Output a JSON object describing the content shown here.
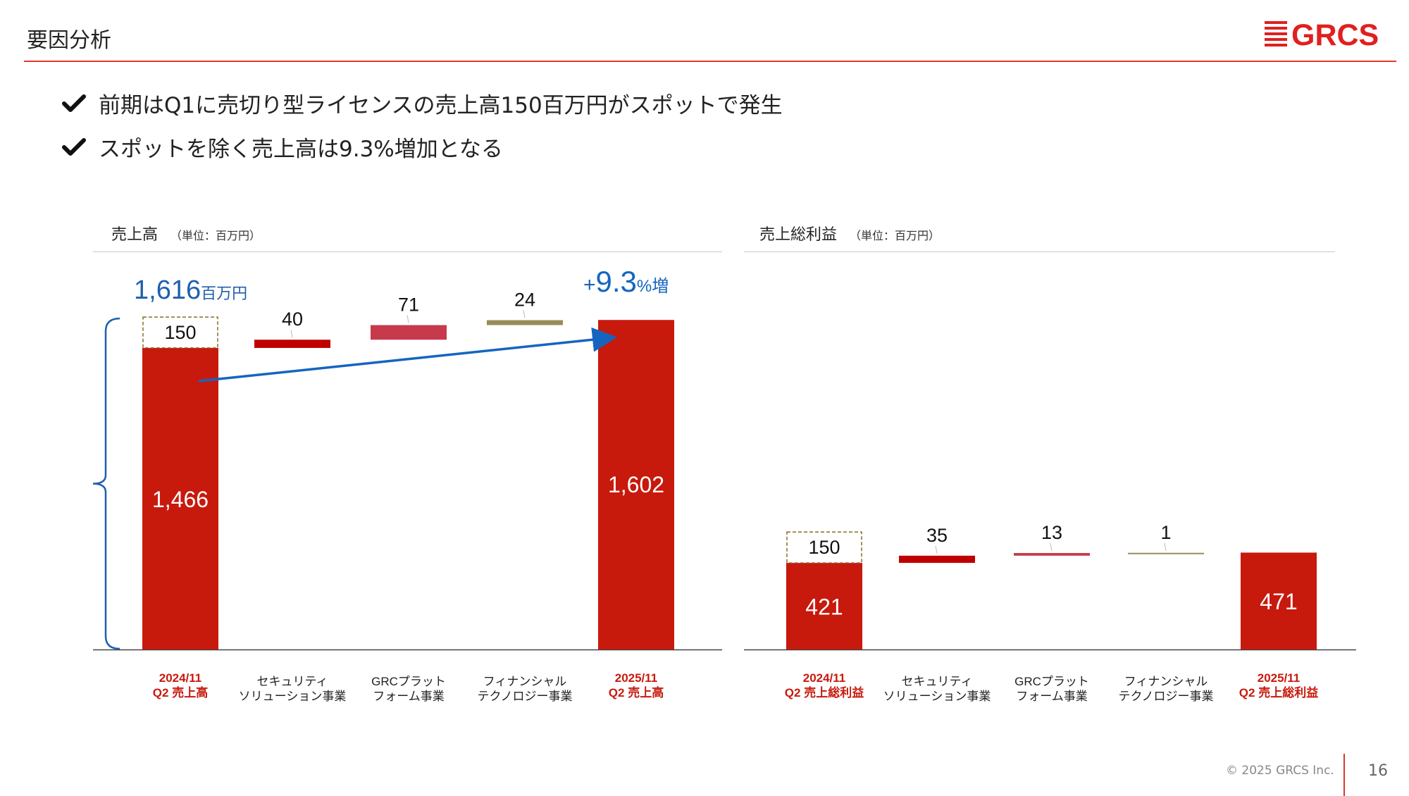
{
  "header": {
    "title": "要因分析",
    "logo_text": "GRCS"
  },
  "bullets": [
    "前期はQ1に売切り型ライセンスの売上高150百万円がスポットで発生",
    "スポットを除く売上高は9.3%増加となる"
  ],
  "colors": {
    "accent_red": "#c8190d",
    "rule_red": "#e8382c",
    "security": "#c00000",
    "grc_platform": "#c63a4c",
    "fintech": "#9a8c58",
    "arrow_blue": "#1565c0",
    "brace_blue": "#1f5fae",
    "spot_box_border": "#8a6b2a"
  },
  "chart_data": [
    {
      "type": "bar",
      "subtype": "waterfall",
      "title": "売上高",
      "unit": "（単位：百万円）",
      "categories": [
        [
          "2024/11",
          "Q2 売上高"
        ],
        [
          "セキュリティ",
          "ソリューション事業"
        ],
        [
          "GRCプラット",
          "フォーム事業"
        ],
        [
          "フィナンシャル",
          "テクノロジー事業"
        ],
        [
          "2025/11",
          "Q2 売上高"
        ]
      ],
      "start_base": 1466,
      "start_spot": 150,
      "increments": [
        40,
        71,
        24
      ],
      "end_total": 1602,
      "labels": [
        "1,466",
        "150",
        "40",
        "71",
        "24",
        "1,602"
      ],
      "total_callout_value": "1,616",
      "total_callout_unit": "百万円",
      "growth_callout_sign": "+",
      "growth_callout_value": "9.3",
      "growth_callout_unit": "%増",
      "ylim": [
        0,
        1700
      ]
    },
    {
      "type": "bar",
      "subtype": "waterfall",
      "title": "売上総利益",
      "unit": "（単位：百万円）",
      "categories": [
        [
          "2024/11",
          "Q2 売上総利益"
        ],
        [
          "セキュリティ",
          "ソリューション事業"
        ],
        [
          "GRCプラット",
          "フォーム事業"
        ],
        [
          "フィナンシャル",
          "テクノロジー事業"
        ],
        [
          "2025/11",
          "Q2 売上総利益"
        ]
      ],
      "start_base": 421,
      "start_spot": 150,
      "increments": [
        35,
        13,
        1
      ],
      "end_total": 471,
      "labels": [
        "421",
        "150",
        "35",
        "13",
        "1",
        "471"
      ],
      "ylim": [
        0,
        1700
      ]
    }
  ],
  "footer": {
    "copyright": "© 2025 GRCS Inc.",
    "page_number": "16"
  }
}
